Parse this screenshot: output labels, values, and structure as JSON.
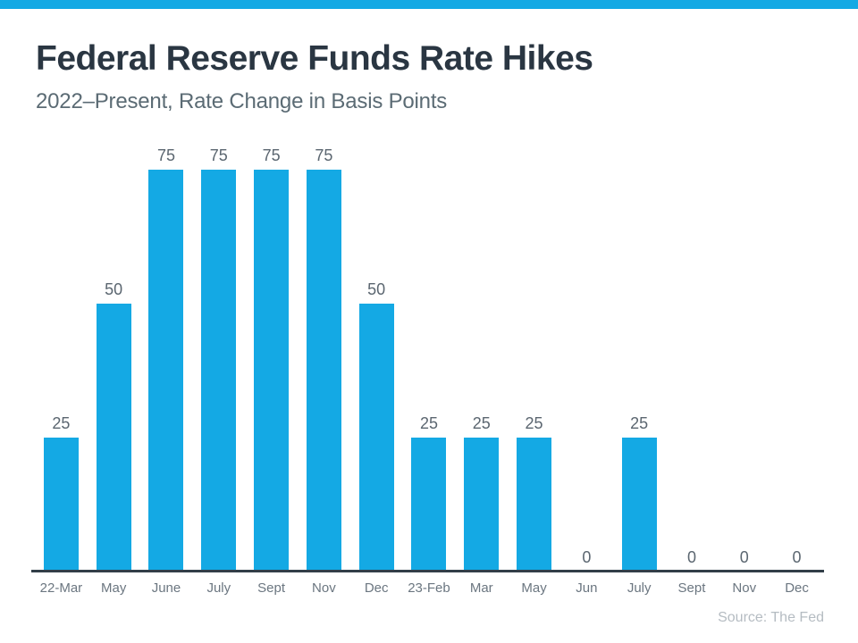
{
  "banner": {
    "color": "#14a9e4"
  },
  "header": {
    "title": "Federal Reserve Funds Rate Hikes",
    "subtitle": "2022–Present, Rate Change in Basis Points"
  },
  "footer": {
    "source": "Source: The Fed"
  },
  "chart_data": {
    "type": "bar",
    "title": "Federal Reserve Funds Rate Hikes",
    "subtitle": "2022–Present, Rate Change in Basis Points",
    "categories": [
      "22-Mar",
      "May",
      "June",
      "July",
      "Sept",
      "Nov",
      "Dec",
      "23-Feb",
      "Mar",
      "May",
      "Jun",
      "July",
      "Sept",
      "Nov",
      "Dec"
    ],
    "values": [
      25,
      50,
      75,
      75,
      75,
      75,
      50,
      25,
      25,
      25,
      0,
      25,
      0,
      0,
      0
    ],
    "xlabel": "",
    "ylabel": "",
    "ylim": [
      0,
      80
    ],
    "grid": false,
    "legend": "none",
    "value_labels_shown": true,
    "bar_color": "#14a9e4",
    "value_label_color": "#5b6670",
    "tick_label_color": "#6b7680",
    "axis_line_color": "#323e48",
    "source": "Source: The Fed"
  }
}
